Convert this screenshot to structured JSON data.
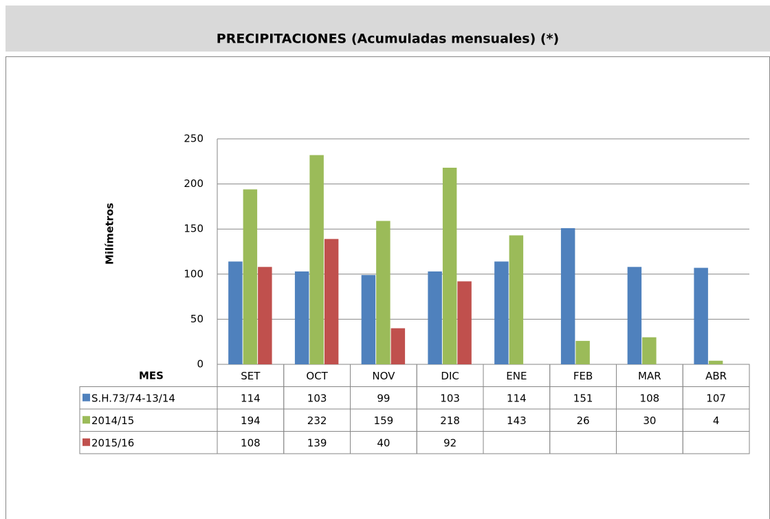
{
  "chart_data": {
    "type": "bar",
    "title": "PRECIPITACIONES (Acumuladas mensuales) (*)",
    "ylabel": "Milímetros",
    "xlabel": "MES",
    "categories": [
      "SET",
      "OCT",
      "NOV",
      "DIC",
      "ENE",
      "FEB",
      "MAR",
      "ABR"
    ],
    "series": [
      {
        "name": "S.H.73/74-13/14",
        "color": "#4f81bd",
        "values": [
          114,
          103,
          99,
          103,
          114,
          151,
          108,
          107
        ]
      },
      {
        "name": "2014/15",
        "color": "#9bbb59",
        "values": [
          194,
          232,
          159,
          218,
          143,
          26,
          30,
          4
        ]
      },
      {
        "name": "2015/16",
        "color": "#c0504d",
        "values": [
          108,
          139,
          40,
          92,
          null,
          null,
          null,
          null
        ]
      }
    ],
    "ylim": [
      0,
      250
    ],
    "yticks": [
      0,
      50,
      100,
      150,
      200,
      250
    ],
    "grid": true
  }
}
